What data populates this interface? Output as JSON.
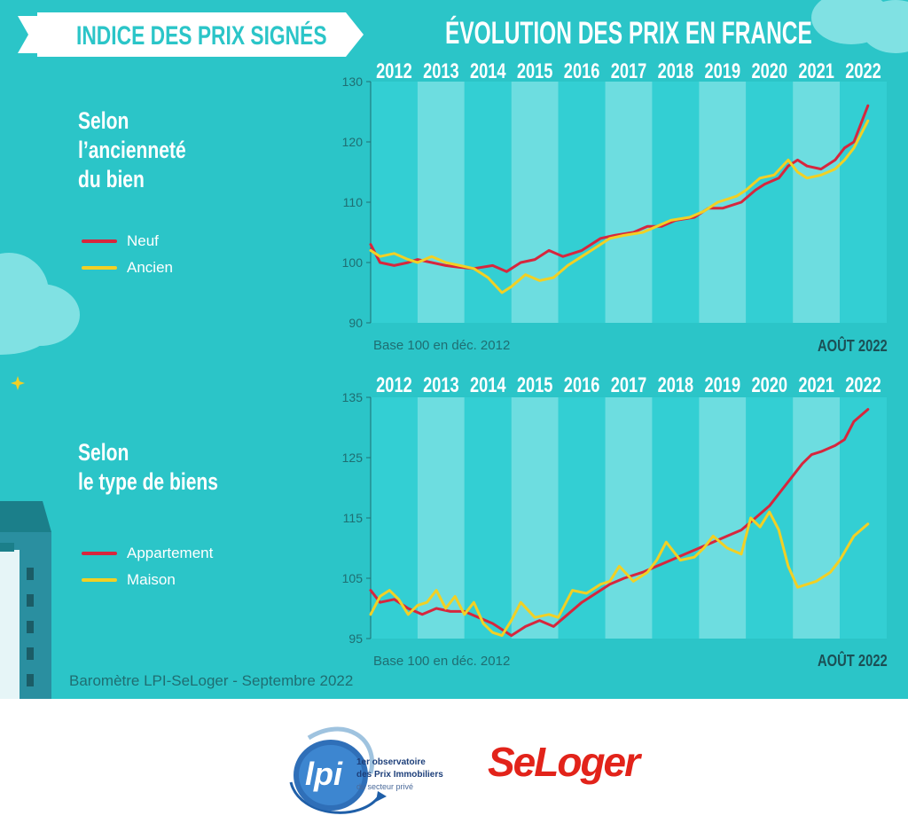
{
  "header": {
    "banner_text": "INDICE DES PRIX SIGNÉS",
    "main_title": "ÉVOLUTION DES PRIX EN FRANCE"
  },
  "sections": [
    {
      "title_lines": [
        "Selon",
        "l’ancienneté",
        "du bien"
      ],
      "legend": [
        {
          "label": "Neuf",
          "color": "#d7263d"
        },
        {
          "label": "Ancien",
          "color": "#f2d024"
        }
      ]
    },
    {
      "title_lines": [
        "Selon",
        "le type de biens"
      ],
      "legend": [
        {
          "label": "Appartement",
          "color": "#d7263d"
        },
        {
          "label": "Maison",
          "color": "#f2d024"
        }
      ]
    }
  ],
  "chart_data": [
    {
      "type": "line",
      "title": "",
      "xlabel": "",
      "ylabel": "",
      "years": [
        "2012",
        "2013",
        "2014",
        "2015",
        "2016",
        "2017",
        "2018",
        "2019",
        "2020",
        "2021",
        "2022"
      ],
      "ylim": [
        90,
        130
      ],
      "yticks": [
        "90",
        "100",
        "110",
        "120",
        "130"
      ],
      "base_note": "Base 100 en déc. 2012",
      "date_label": "AOÛT 2022",
      "series": [
        {
          "name": "Neuf",
          "color": "#d7263d",
          "x": [
            2012.0,
            2012.2,
            2012.5,
            2012.8,
            2013.0,
            2013.3,
            2013.6,
            2013.9,
            2014.2,
            2014.6,
            2014.9,
            2015.2,
            2015.5,
            2015.8,
            2016.1,
            2016.5,
            2016.9,
            2017.2,
            2017.6,
            2017.9,
            2018.2,
            2018.5,
            2018.9,
            2019.2,
            2019.5,
            2019.9,
            2020.2,
            2020.4,
            2020.7,
            2020.9,
            2021.1,
            2021.3,
            2021.6,
            2021.9,
            2022.1,
            2022.3,
            2022.6
          ],
          "y": [
            103,
            100,
            99.5,
            100,
            100.5,
            100,
            99.5,
            99.2,
            99,
            99.5,
            98.5,
            100,
            100.5,
            102,
            101,
            102,
            104,
            104.5,
            105,
            106,
            106,
            107,
            107.5,
            109,
            109,
            110,
            112,
            113,
            114,
            116,
            117,
            116,
            115.5,
            117,
            119,
            120,
            126
          ]
        },
        {
          "name": "Ancien",
          "color": "#f2d024",
          "x": [
            2012.0,
            2012.2,
            2012.5,
            2012.8,
            2013.0,
            2013.3,
            2013.6,
            2013.9,
            2014.2,
            2014.5,
            2014.8,
            2015.0,
            2015.3,
            2015.6,
            2015.9,
            2016.2,
            2016.5,
            2016.8,
            2017.1,
            2017.4,
            2017.8,
            2018.1,
            2018.4,
            2018.8,
            2019.1,
            2019.4,
            2019.8,
            2020.0,
            2020.3,
            2020.6,
            2020.9,
            2021.1,
            2021.3,
            2021.6,
            2021.9,
            2022.1,
            2022.3,
            2022.6
          ],
          "y": [
            102,
            101,
            101.5,
            100.5,
            100,
            101,
            100,
            99.5,
            99,
            97.5,
            95,
            96,
            98,
            97,
            97.5,
            99.5,
            101,
            102.5,
            104,
            104.5,
            105,
            106,
            107,
            107.5,
            108.5,
            110,
            111,
            112,
            114,
            114.5,
            117,
            115,
            114,
            114.5,
            115.5,
            117,
            119,
            123.5
          ]
        }
      ]
    },
    {
      "type": "line",
      "title": "",
      "xlabel": "",
      "ylabel": "",
      "years": [
        "2012",
        "2013",
        "2014",
        "2015",
        "2016",
        "2017",
        "2018",
        "2019",
        "2020",
        "2021",
        "2022"
      ],
      "ylim": [
        95,
        135
      ],
      "yticks": [
        "95",
        "105",
        "115",
        "125",
        "135"
      ],
      "base_note": "Base 100 en déc. 2012",
      "date_label": "AOÛT 2022",
      "series": [
        {
          "name": "Appartement",
          "color": "#d7263d",
          "x": [
            2012.0,
            2012.2,
            2012.5,
            2012.8,
            2013.1,
            2013.4,
            2013.7,
            2014.0,
            2014.3,
            2014.6,
            2014.8,
            2015.0,
            2015.3,
            2015.6,
            2015.9,
            2016.2,
            2016.5,
            2016.8,
            2017.1,
            2017.4,
            2017.8,
            2018.1,
            2018.4,
            2018.7,
            2019.0,
            2019.3,
            2019.6,
            2019.9,
            2020.2,
            2020.5,
            2020.8,
            2021.0,
            2021.2,
            2021.4,
            2021.6,
            2021.9,
            2022.1,
            2022.3,
            2022.6
          ],
          "y": [
            103,
            101,
            101.5,
            100,
            99,
            100,
            99.5,
            99.5,
            98.5,
            97.5,
            96.5,
            95.5,
            97,
            98,
            97,
            99,
            101,
            102.5,
            104,
            105,
            106,
            107,
            108,
            109,
            110,
            111,
            112,
            113,
            115,
            117,
            120,
            122,
            124,
            125.5,
            126,
            127,
            128,
            131,
            133
          ]
        },
        {
          "name": "Maison",
          "color": "#f2d024",
          "x": [
            2012.0,
            2012.2,
            2012.4,
            2012.6,
            2012.8,
            2013.0,
            2013.2,
            2013.4,
            2013.6,
            2013.8,
            2014.0,
            2014.2,
            2014.4,
            2014.6,
            2014.8,
            2015.0,
            2015.2,
            2015.5,
            2015.8,
            2016.0,
            2016.3,
            2016.6,
            2016.9,
            2017.1,
            2017.3,
            2017.6,
            2017.9,
            2018.1,
            2018.3,
            2018.6,
            2018.9,
            2019.1,
            2019.3,
            2019.6,
            2019.9,
            2020.1,
            2020.3,
            2020.5,
            2020.7,
            2020.9,
            2021.1,
            2021.3,
            2021.5,
            2021.8,
            2022.0,
            2022.3,
            2022.6
          ],
          "y": [
            99,
            102,
            103,
            101.5,
            99,
            100.5,
            101,
            103,
            100,
            102,
            99,
            101,
            97.5,
            96,
            95.5,
            98,
            101,
            98.5,
            99,
            98.5,
            103,
            102.5,
            104,
            104.5,
            107,
            104.5,
            106,
            108,
            111,
            108,
            108.5,
            110,
            112,
            110,
            109,
            115,
            113.5,
            116,
            113,
            107,
            103.5,
            104,
            104.5,
            106,
            108,
            112,
            114
          ]
        }
      ]
    }
  ],
  "footer": {
    "credit": "Baromètre LPI-SeLoger - Septembre 2022",
    "lpi_logo_letters": "lpi",
    "lpi_line1": "1er observatoire",
    "lpi_line2": "des Prix Immobiliers",
    "lpi_line3": "du secteur privé",
    "seloger": "SeLoger"
  }
}
